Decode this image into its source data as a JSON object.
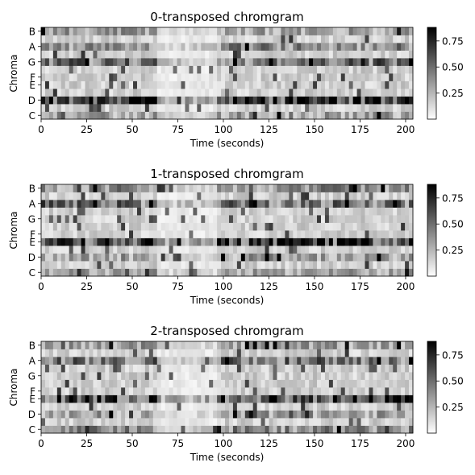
{
  "chart_data": [
    {
      "type": "heatmap",
      "title": "0-transposed chromgram",
      "xlabel": "Time (seconds)",
      "ylabel": "Chroma",
      "xlim": [
        0,
        204
      ],
      "x_ticks": [
        0,
        25,
        50,
        75,
        100,
        125,
        150,
        175,
        200
      ],
      "y_tick_labels": [
        "C",
        "D",
        "E",
        "F",
        "G",
        "A",
        "B"
      ],
      "colorbar": {
        "ticks": [
          0.25,
          0.5,
          0.75
        ],
        "tick_labels": [
          "0.25",
          "0.50",
          "0.75"
        ],
        "range": [
          0.0,
          0.88
        ],
        "colormap": "gray_r"
      },
      "strong_rows": {
        "D": 0.72,
        "G": 0.5,
        "A": 0.42,
        "C": 0.35,
        "B": 0.35
      },
      "seed": 11
    },
    {
      "type": "heatmap",
      "title": "1-transposed chromgram",
      "xlabel": "Time (seconds)",
      "ylabel": "Chroma",
      "xlim": [
        0,
        204
      ],
      "x_ticks": [
        0,
        25,
        50,
        75,
        100,
        125,
        150,
        175,
        200
      ],
      "y_tick_labels": [
        "C",
        "D",
        "E",
        "F",
        "G",
        "A",
        "B"
      ],
      "colorbar": {
        "ticks": [
          0.25,
          0.5,
          0.75
        ],
        "tick_labels": [
          "0.25",
          "0.50",
          "0.75"
        ],
        "range": [
          0.0,
          0.88
        ],
        "colormap": "gray_r"
      },
      "strong_rows": {
        "E": 0.72,
        "A": 0.5,
        "B": 0.42,
        "D": 0.35,
        "C": 0.35
      },
      "seed": 23
    },
    {
      "type": "heatmap",
      "title": "2-transposed chromgram",
      "xlabel": "Time (seconds)",
      "ylabel": "Chroma",
      "xlim": [
        0,
        204
      ],
      "x_ticks": [
        0,
        25,
        50,
        75,
        100,
        125,
        150,
        175,
        200
      ],
      "y_tick_labels": [
        "C",
        "D",
        "E",
        "F",
        "G",
        "A",
        "B"
      ],
      "colorbar": {
        "ticks": [
          0.25,
          0.5,
          0.75
        ],
        "tick_labels": [
          "0.25",
          "0.50",
          "0.75"
        ],
        "range": [
          0.0,
          0.88
        ],
        "colormap": "gray_r"
      },
      "strong_rows": {
        "E": 0.72,
        "A": 0.5,
        "C": 0.42,
        "D": 0.35,
        "B": 0.35
      },
      "seed": 37
    }
  ]
}
